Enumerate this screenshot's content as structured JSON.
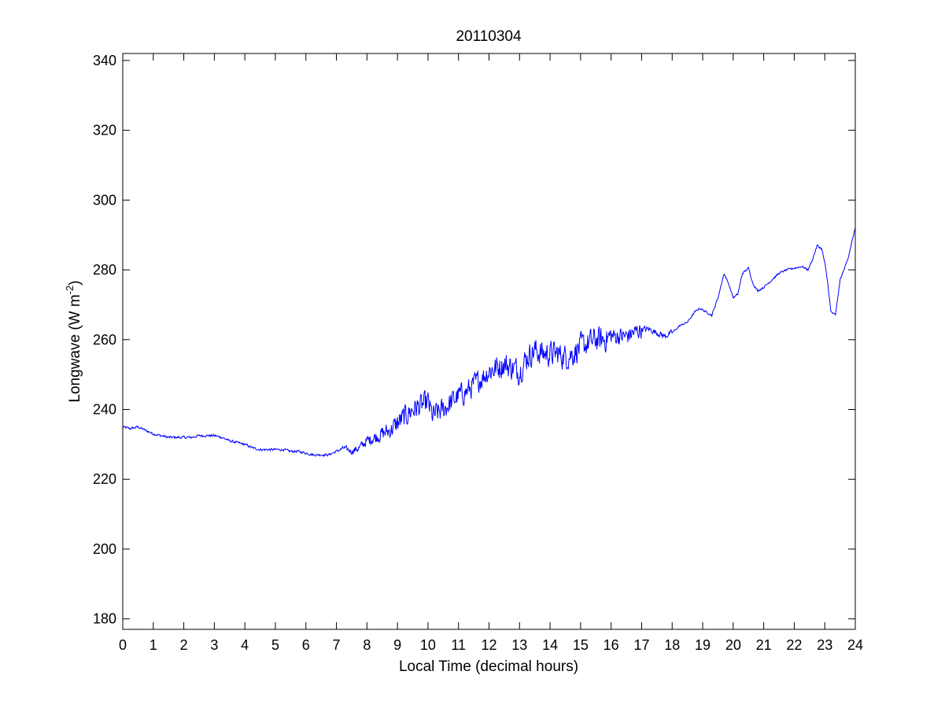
{
  "chart_data": {
    "type": "line",
    "title": "20110304",
    "xlabel": "Local Time (decimal hours)",
    "ylabel": {
      "base": "Longwave (W m",
      "superscript": "-2",
      "suffix": ")"
    },
    "xlim": [
      0,
      24
    ],
    "ylim": [
      177,
      342
    ],
    "xticks": [
      0,
      1,
      2,
      3,
      4,
      5,
      6,
      7,
      8,
      9,
      10,
      11,
      12,
      13,
      14,
      15,
      16,
      17,
      18,
      19,
      20,
      21,
      22,
      23,
      24
    ],
    "yticks": [
      180,
      200,
      220,
      240,
      260,
      280,
      300,
      320,
      340
    ],
    "grid": false,
    "colors": {
      "line": "#0000ff",
      "axes": "#000000",
      "background": "#ffffff"
    },
    "series": [
      {
        "noise_note": "",
        "x": [
          0,
          0.25,
          0.5,
          0.75,
          1.0,
          1.25,
          1.5,
          1.75,
          2.0,
          2.25,
          2.5,
          2.75,
          3.0,
          3.25,
          3.5,
          3.75,
          4.0,
          4.25,
          4.5,
          4.75,
          5.0,
          5.25,
          5.5,
          5.75,
          6.0,
          6.25,
          6.5,
          6.75,
          7.0,
          7.25,
          7.5,
          7.75,
          8.0,
          8.25,
          8.5,
          8.75,
          9.0,
          9.25,
          9.5,
          9.75,
          10.0,
          10.15,
          10.3,
          10.5,
          10.75,
          11.0,
          11.25,
          11.5,
          11.75,
          12.0,
          12.25,
          12.5,
          12.75,
          13.0,
          13.25,
          13.5,
          13.75,
          14.0,
          14.25,
          14.5,
          14.75,
          15.0,
          15.25,
          15.5,
          15.75,
          16.0,
          16.25,
          16.5,
          16.75,
          17.0,
          17.25,
          17.5,
          17.75,
          18.0,
          18.25,
          18.5,
          18.75,
          18.9,
          19.1,
          19.3,
          19.5,
          19.7,
          19.85,
          20.0,
          20.15,
          20.3,
          20.5,
          20.65,
          20.8,
          21.0,
          21.25,
          21.5,
          21.75,
          22.0,
          22.25,
          22.45,
          22.6,
          22.75,
          22.9,
          23.0,
          23.1,
          23.2,
          23.35,
          23.5,
          23.75,
          24.0
        ],
        "y": [
          235,
          234.5,
          235,
          234,
          233,
          232.5,
          232,
          232,
          232,
          232,
          232.5,
          232.5,
          232.5,
          232,
          231,
          230.5,
          230,
          229,
          228.5,
          228.5,
          228.5,
          228.5,
          228,
          228,
          227.5,
          227,
          227,
          227,
          228,
          229,
          228,
          229,
          231,
          232,
          233,
          234,
          236,
          238,
          240,
          241,
          242,
          238,
          239,
          240,
          242,
          244,
          245,
          247,
          249,
          251,
          252,
          253,
          252,
          251,
          255,
          257,
          256,
          256,
          256,
          255,
          256,
          258,
          259,
          260,
          260,
          261,
          261,
          261,
          262,
          263,
          263,
          262,
          261,
          262,
          264,
          265,
          268,
          269,
          268,
          267,
          272,
          279,
          276,
          272,
          273,
          279,
          280.5,
          276,
          274,
          275,
          277,
          279,
          280,
          280.5,
          281,
          280,
          283,
          287,
          286,
          282,
          276,
          268,
          267,
          277,
          283,
          292
        ]
      }
    ]
  }
}
